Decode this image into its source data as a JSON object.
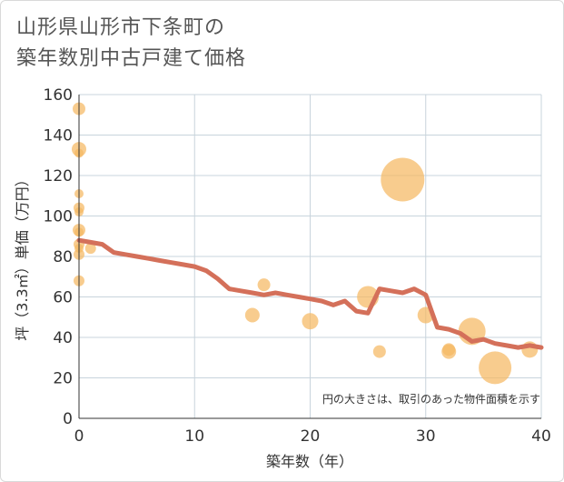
{
  "title_line1": "山形県山形市下条町の",
  "title_line2": "築年数別中古戸建て価格",
  "note": "円の大きさは、取引のあった物件面積を示す",
  "colors": {
    "bubble": "#f5b963",
    "line": "#d4705a",
    "grid": "#c8d4dc",
    "axis": "#333333"
  },
  "chart_data": {
    "type": "scatter",
    "xlabel": "築年数（年）",
    "ylabel": "坪（3.3㎡）単価（万円）",
    "xlim": [
      0,
      40
    ],
    "ylim": [
      0,
      160
    ],
    "xticks": [
      0,
      10,
      20,
      30,
      40
    ],
    "yticks": [
      0,
      20,
      40,
      60,
      80,
      100,
      120,
      140,
      160
    ],
    "grid": true,
    "bubbles": [
      {
        "x": 0,
        "y": 153,
        "size": 7
      },
      {
        "x": 0,
        "y": 133,
        "size": 8
      },
      {
        "x": 0,
        "y": 131,
        "size": 5
      },
      {
        "x": 0,
        "y": 111,
        "size": 5
      },
      {
        "x": 0,
        "y": 104,
        "size": 6
      },
      {
        "x": 0,
        "y": 102,
        "size": 5
      },
      {
        "x": 0,
        "y": 93,
        "size": 7
      },
      {
        "x": 0,
        "y": 92,
        "size": 5
      },
      {
        "x": 0,
        "y": 86,
        "size": 6
      },
      {
        "x": 0,
        "y": 84,
        "size": 5
      },
      {
        "x": 0,
        "y": 81,
        "size": 6
      },
      {
        "x": 0,
        "y": 68,
        "size": 6
      },
      {
        "x": 1,
        "y": 84,
        "size": 6
      },
      {
        "x": 15,
        "y": 51,
        "size": 8
      },
      {
        "x": 16,
        "y": 66,
        "size": 7
      },
      {
        "x": 20,
        "y": 48,
        "size": 9
      },
      {
        "x": 25,
        "y": 60,
        "size": 12
      },
      {
        "x": 26,
        "y": 33,
        "size": 7
      },
      {
        "x": 28,
        "y": 118,
        "size": 24
      },
      {
        "x": 30,
        "y": 51,
        "size": 9
      },
      {
        "x": 32,
        "y": 33,
        "size": 8
      },
      {
        "x": 32,
        "y": 34,
        "size": 7
      },
      {
        "x": 34,
        "y": 43,
        "size": 15
      },
      {
        "x": 36,
        "y": 25,
        "size": 18
      },
      {
        "x": 39,
        "y": 34,
        "size": 9
      }
    ],
    "trend": [
      [
        0,
        88
      ],
      [
        1,
        87
      ],
      [
        2,
        86
      ],
      [
        3,
        82
      ],
      [
        4,
        81
      ],
      [
        5,
        80
      ],
      [
        6,
        79
      ],
      [
        7,
        78
      ],
      [
        8,
        77
      ],
      [
        9,
        76
      ],
      [
        10,
        75
      ],
      [
        11,
        73
      ],
      [
        12,
        69
      ],
      [
        13,
        64
      ],
      [
        14,
        63
      ],
      [
        15,
        62
      ],
      [
        16,
        61
      ],
      [
        17,
        62
      ],
      [
        18,
        61
      ],
      [
        19,
        60
      ],
      [
        20,
        59
      ],
      [
        21,
        58
      ],
      [
        22,
        56
      ],
      [
        23,
        58
      ],
      [
        24,
        53
      ],
      [
        25,
        52
      ],
      [
        26,
        64
      ],
      [
        27,
        63
      ],
      [
        28,
        62
      ],
      [
        29,
        64
      ],
      [
        30,
        61
      ],
      [
        31,
        45
      ],
      [
        32,
        44
      ],
      [
        33,
        42
      ],
      [
        34,
        38
      ],
      [
        35,
        39
      ],
      [
        36,
        37
      ],
      [
        37,
        36
      ],
      [
        38,
        35
      ],
      [
        39,
        36
      ],
      [
        40,
        35
      ]
    ]
  }
}
